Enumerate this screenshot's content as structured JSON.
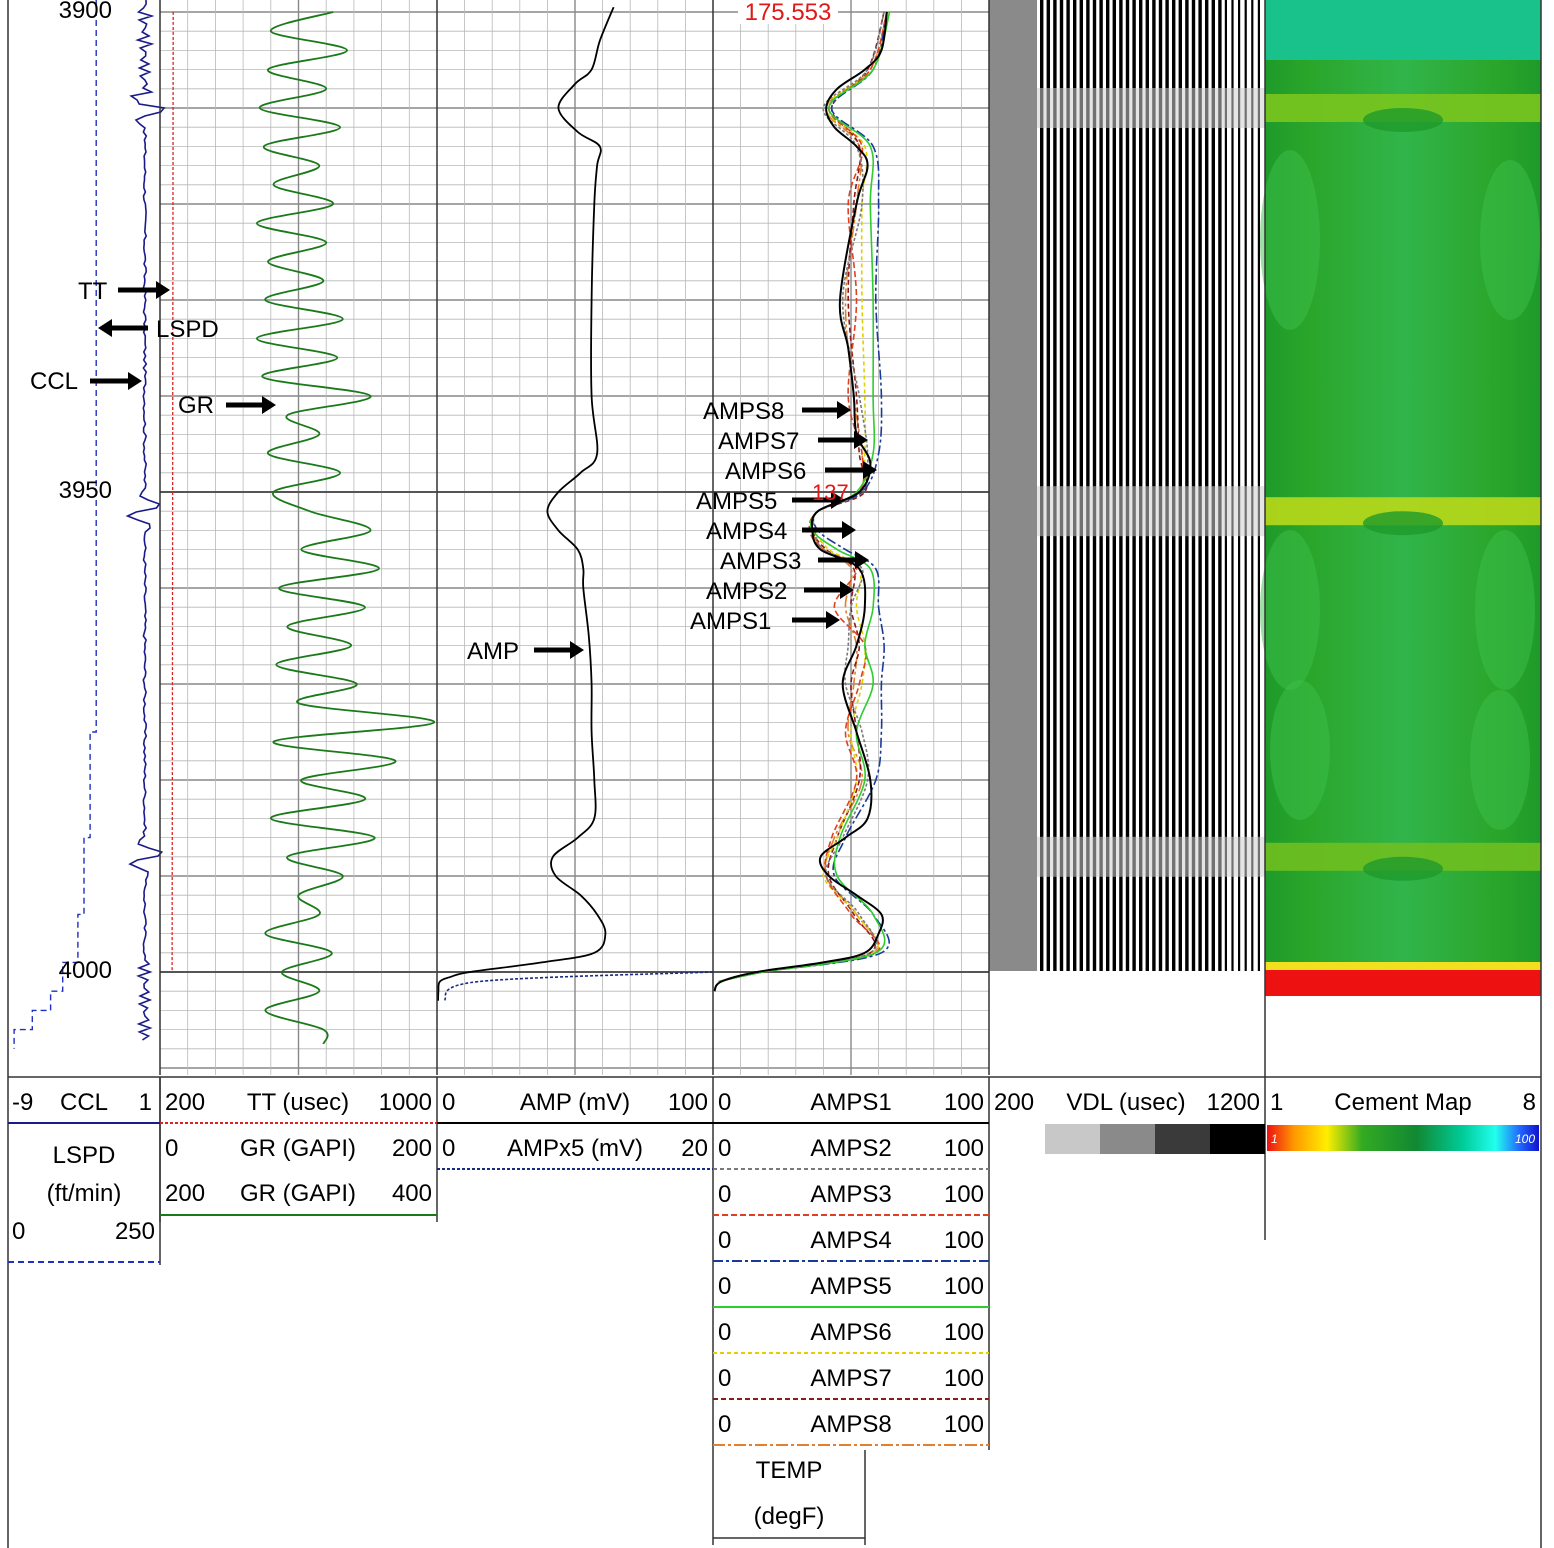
{
  "chart_data": {
    "type": "line",
    "depth_ticks": [
      "3900",
      "3950",
      "4000"
    ],
    "depth_range": [
      3899,
      4008
    ],
    "tracks": [
      {
        "name": "CCL",
        "min": "-9",
        "max": "1"
      },
      {
        "name": "TT (usec)",
        "min": "200",
        "max": "1000"
      },
      {
        "name": "AMP (mV)",
        "min": "0",
        "max": "100"
      },
      {
        "name": "AMPS1",
        "min": "0",
        "max": "100"
      },
      {
        "name": "VDL (usec)",
        "min": "200",
        "max": "1200"
      },
      {
        "name": "Cement Map",
        "min": "1",
        "max": "8"
      }
    ],
    "scales": {
      "lspd": {
        "name": "LSPD",
        "unit": "(ft/min)",
        "min": "0",
        "max": "250"
      },
      "gr1": {
        "name": "GR (GAPI)",
        "min": "0",
        "max": "200"
      },
      "gr2": {
        "name": "GR (GAPI)",
        "min": "200",
        "max": "400"
      },
      "ampx5": {
        "name": "AMPx5 (mV)",
        "min": "0",
        "max": "20"
      },
      "amps": [
        {
          "name": "AMPS2",
          "min": "0",
          "max": "100"
        },
        {
          "name": "AMPS3",
          "min": "0",
          "max": "100"
        },
        {
          "name": "AMPS4",
          "min": "0",
          "max": "100"
        },
        {
          "name": "AMPS5",
          "min": "0",
          "max": "100"
        },
        {
          "name": "AMPS6",
          "min": "0",
          "max": "100"
        },
        {
          "name": "AMPS7",
          "min": "0",
          "max": "100"
        },
        {
          "name": "AMPS8",
          "min": "0",
          "max": "100"
        }
      ],
      "temp": {
        "name": "TEMP",
        "unit": "(degF)"
      }
    },
    "cement_map_colorbar": {
      "min": "1",
      "max": "100"
    },
    "annotations": [
      "TT",
      "LSPD",
      "CCL",
      "GR",
      "AMP",
      "AMPS8",
      "AMPS7",
      "AMPS6",
      "AMPS5",
      "AMPS4",
      "AMPS3",
      "AMPS2",
      "AMPS1"
    ],
    "value_labels": [
      "175.553",
      "137"
    ],
    "collar_depths": [
      3910,
      3952,
      3988
    ],
    "series": [
      {
        "name": "GR",
        "unit": "GAPI",
        "color": "#1a7a1a",
        "depth": [
          3900,
          3902,
          3904,
          3906,
          3908,
          3910,
          3912,
          3914,
          3916,
          3918,
          3920,
          3922,
          3924,
          3926,
          3928,
          3930,
          3932,
          3934,
          3936,
          3938,
          3940,
          3942,
          3944,
          3946,
          3948,
          3950,
          3952,
          3954,
          3956,
          3958,
          3960,
          3962,
          3964,
          3966,
          3968,
          3970,
          3972,
          3974,
          3976,
          3978,
          3980,
          3982,
          3984,
          3986,
          3988,
          3990,
          3992,
          3994,
          3996,
          3998,
          4000,
          4002,
          4004,
          4006,
          4007.5
        ],
        "value": [
          125,
          80,
          135,
          78,
          120,
          72,
          130,
          75,
          115,
          82,
          125,
          70,
          120,
          78,
          118,
          76,
          132,
          70,
          128,
          74,
          152,
          92,
          115,
          78,
          130,
          82,
          108,
          152,
          102,
          158,
          86,
          148,
          92,
          138,
          84,
          142,
          100,
          198,
          82,
          170,
          102,
          148,
          80,
          155,
          92,
          132,
          100,
          115,
          76,
          124,
          88,
          115,
          76,
          118,
          118
        ]
      },
      {
        "name": "TT",
        "unit": "usec",
        "color": "#e02020",
        "depth": [
          3900,
          4000
        ],
        "value": [
          238,
          235
        ]
      },
      {
        "name": "AMP",
        "unit": "mV",
        "color": "#000000",
        "depth": [
          3899.5,
          3903,
          3906,
          3907.5,
          3910,
          3912.5,
          3914,
          3916,
          3920,
          3930,
          3940,
          3946,
          3948,
          3950,
          3952,
          3954,
          3956,
          3958,
          3960,
          3965,
          3970,
          3975,
          3980,
          3984,
          3986,
          3988,
          3990,
          3992,
          3994,
          3996,
          3998,
          3999,
          4000,
          4000.5,
          4001,
          4002,
          4003
        ],
        "value": [
          64,
          59,
          56,
          50,
          44,
          51,
          59,
          58,
          57,
          56,
          56,
          58,
          52,
          44,
          40,
          44,
          51,
          53,
          53,
          55,
          56,
          56,
          57,
          57,
          51,
          42,
          43,
          52,
          58,
          61,
          57,
          38,
          12,
          5,
          1,
          0.5,
          0.4
        ]
      },
      {
        "name": "AMPx5",
        "unit": "mV",
        "color": "#1a2a80",
        "depth": [
          4000,
          4001,
          4003
        ],
        "value": [
          20,
          3,
          0.5
        ]
      },
      {
        "name": "AMPS1",
        "unit": "",
        "color": "#000000",
        "depth": [
          3900,
          3904,
          3906,
          3908,
          3910,
          3912,
          3914,
          3916,
          3920,
          3930,
          3935,
          3940,
          3944,
          3947,
          3950,
          3952,
          3954,
          3956,
          3958,
          3962,
          3966,
          3970,
          3975,
          3980,
          3984,
          3986,
          3988,
          3990,
          3992,
          3994,
          3996,
          3998,
          3999,
          4000,
          4001,
          4002
        ],
        "value": [
          63,
          61,
          55,
          45,
          41,
          44,
          52,
          56,
          52,
          46,
          49,
          51,
          52,
          57,
          53,
          38,
          36,
          39,
          53,
          55,
          52,
          47,
          52,
          57,
          56,
          48,
          39,
          42,
          52,
          61,
          60,
          55,
          40,
          16,
          3,
          0.5
        ]
      },
      {
        "name": "AMPS5",
        "unit": "",
        "color": "#2ecc2e",
        "depth": [
          3900,
          3906,
          3910,
          3914,
          3920,
          3930,
          3940,
          3946,
          3950,
          3952,
          3954,
          3956,
          3958,
          3962,
          3966,
          3970,
          3975,
          3980,
          3986,
          3990,
          3994,
          3998,
          4000,
          4001
        ],
        "value": [
          64,
          58,
          42,
          57,
          57,
          58,
          58,
          58,
          52,
          38,
          36,
          45,
          57,
          58,
          55,
          58,
          52,
          55,
          46,
          45,
          58,
          59,
          18,
          2
        ]
      },
      {
        "name": "AMPS2",
        "unit": "",
        "color": "#7a7a7a",
        "depth": [
          3900,
          3906,
          3910,
          3914,
          3920,
          3930,
          3940,
          3946,
          3950,
          3952,
          3954,
          3956,
          3958,
          3962,
          3966,
          3970,
          3975,
          3980,
          3986,
          3990,
          3994,
          3998,
          4000,
          4001
        ],
        "value": [
          62,
          56,
          40,
          52,
          54,
          47,
          53,
          56,
          54,
          38,
          37,
          40,
          54,
          50,
          49,
          48,
          54,
          56,
          47,
          41,
          53,
          57,
          18,
          2
        ]
      },
      {
        "name": "AMPS3",
        "unit": "",
        "color": "#e04020",
        "depth": [
          3900,
          3906,
          3910,
          3914,
          3920,
          3930,
          3940,
          3946,
          3950,
          3952,
          3954,
          3956,
          3958,
          3962,
          3966,
          3970,
          3975,
          3980,
          3986,
          3990,
          3994,
          3998,
          4000,
          4001
        ],
        "value": [
          63,
          57,
          42,
          54,
          49,
          52,
          49,
          54,
          53,
          38,
          35,
          40,
          52,
          44,
          55,
          53,
          48,
          52,
          43,
          41,
          50,
          59,
          18,
          2
        ]
      },
      {
        "name": "AMPS4",
        "unit": "",
        "color": "#1a3a9a",
        "depth": [
          3900,
          3906,
          3910,
          3914,
          3920,
          3930,
          3940,
          3946,
          3950,
          3952,
          3954,
          3956,
          3958,
          3962,
          3966,
          3970,
          3975,
          3980,
          3986,
          3990,
          3994,
          3998,
          4000,
          4001
        ],
        "value": [
          63,
          58,
          43,
          58,
          60,
          59,
          61,
          60,
          54,
          38,
          38,
          48,
          59,
          60,
          62,
          61,
          61,
          59,
          48,
          44,
          58,
          61,
          18,
          2
        ]
      },
      {
        "name": "AMPS6",
        "unit": "",
        "color": "#e0d000",
        "depth": [
          3900,
          3906,
          3910,
          3914,
          3920,
          3930,
          3940,
          3946,
          3950,
          3952,
          3954,
          3956,
          3958,
          3962,
          3966,
          3970,
          3975,
          3980,
          3986,
          3990,
          3994,
          3998,
          4000,
          4001
        ],
        "value": [
          64,
          57,
          41,
          55,
          54,
          54,
          55,
          55,
          53,
          38,
          37,
          42,
          53,
          52,
          55,
          54,
          50,
          52,
          45,
          40,
          52,
          58,
          18,
          2
        ]
      },
      {
        "name": "AMPS7",
        "unit": "",
        "color": "#8b1a1a",
        "depth": [
          3900,
          3906,
          3910,
          3914,
          3920,
          3930,
          3940,
          3946,
          3950,
          3952,
          3954,
          3956,
          3958,
          3962,
          3966,
          3970,
          3975,
          3980,
          3986,
          3990,
          3994,
          3998,
          4000,
          4001
        ],
        "value": [
          62,
          56,
          43,
          53,
          51,
          49,
          52,
          53,
          55,
          38,
          36,
          41,
          51,
          50,
          53,
          50,
          52,
          53,
          45,
          42,
          51,
          57,
          18,
          2
        ]
      },
      {
        "name": "AMPS8",
        "unit": "",
        "color": "#e08030",
        "depth": [
          3900,
          3906,
          3910,
          3914,
          3920,
          3930,
          3940,
          3946,
          3950,
          3952,
          3954,
          3956,
          3958,
          3962,
          3966,
          3970,
          3975,
          3980,
          3986,
          3990,
          3994,
          3998,
          4000,
          4001
        ],
        "value": [
          63,
          57,
          41,
          53,
          52,
          48,
          51,
          54,
          53,
          38,
          36,
          40,
          50,
          48,
          52,
          51,
          49,
          54,
          44,
          41,
          52,
          58,
          18,
          2
        ]
      },
      {
        "name": "CCL",
        "unit": "",
        "color": "#1a1a8a",
        "baseline": 0,
        "depth": [
          3910,
          3952,
          3988
        ],
        "value": [
          1,
          1,
          1
        ]
      },
      {
        "name": "LSPD",
        "unit": "ft/min",
        "color": "#2030c0",
        "depth": [
          3899,
          3975,
          3986,
          3994,
          3999,
          4002,
          4004,
          4006,
          4008
        ],
        "value": [
          145,
          145,
          135,
          125,
          115,
          90,
          70,
          40,
          10
        ]
      }
    ],
    "vdl": {
      "name": "VDL (usec)",
      "range": [
        200,
        1200
      ],
      "shaded_band_usec": [
        200,
        300
      ]
    },
    "cement_map": {
      "name": "Cement Map",
      "range": [
        1,
        8
      ],
      "dominant_color": "#2aa52a",
      "bottom_color": "#ee1111"
    }
  }
}
